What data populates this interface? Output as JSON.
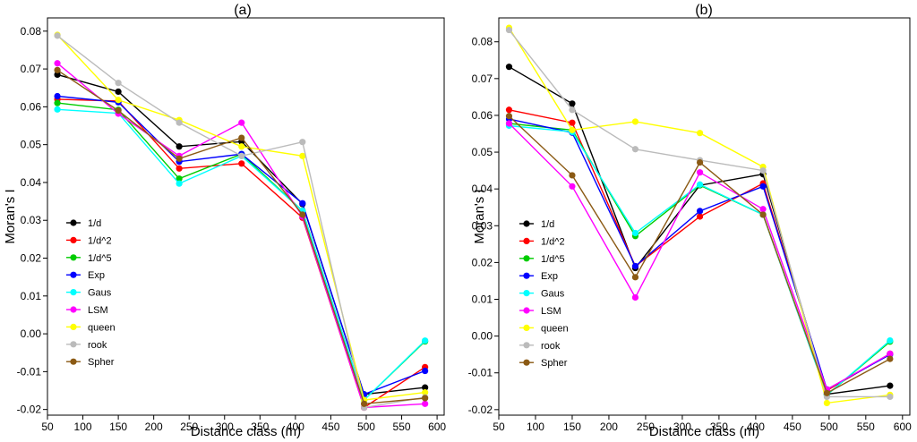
{
  "chart_data": [
    {
      "type": "line",
      "title": "(a)",
      "xlabel": "Distance class (m)",
      "ylabel": "Moran's I",
      "xlim": [
        50,
        610
      ],
      "ylim": [
        -0.0215,
        0.0835
      ],
      "xticks": [
        50,
        100,
        150,
        200,
        250,
        300,
        350,
        400,
        450,
        500,
        550,
        600
      ],
      "yticks": [
        -0.02,
        -0.01,
        0.0,
        0.01,
        0.02,
        0.03,
        0.04,
        0.05,
        0.06,
        0.07,
        0.08
      ],
      "ytick_labels": [
        "-0.02",
        "-0.01",
        "0.00",
        "0.01",
        "0.02",
        "0.03",
        "0.04",
        "0.05",
        "0.06",
        "0.07",
        "0.08"
      ],
      "x": [
        64,
        150,
        236,
        324,
        410,
        497,
        583
      ],
      "legend_position": "left",
      "series": [
        {
          "name": "1/d",
          "color": "#000000",
          "values": [
            0.0685,
            0.064,
            0.0495,
            0.0508,
            0.0343,
            -0.016,
            -0.0142
          ]
        },
        {
          "name": "1/d^2",
          "color": "#ff0000",
          "values": [
            0.062,
            0.0615,
            0.0437,
            0.045,
            0.0307,
            -0.0195,
            -0.0088
          ]
        },
        {
          "name": "1/d^5",
          "color": "#00cc00",
          "values": [
            0.061,
            0.0592,
            0.041,
            0.0475,
            0.0325,
            -0.0175,
            -0.002
          ]
        },
        {
          "name": "Exp",
          "color": "#0000ff",
          "values": [
            0.0628,
            0.0612,
            0.0455,
            0.0475,
            0.0345,
            -0.016,
            -0.0098
          ]
        },
        {
          "name": "Gaus",
          "color": "#00ffff",
          "values": [
            0.0593,
            0.0583,
            0.0397,
            0.047,
            0.0325,
            -0.0175,
            -0.0018
          ]
        },
        {
          "name": "LSM",
          "color": "#ff00ff",
          "values": [
            0.0715,
            0.0582,
            0.047,
            0.0558,
            0.031,
            -0.0195,
            -0.0185
          ]
        },
        {
          "name": "queen",
          "color": "#ffff00",
          "values": [
            0.079,
            0.0618,
            0.0565,
            0.0495,
            0.047,
            -0.0175,
            -0.0155
          ]
        },
        {
          "name": "rook",
          "color": "#bbbbbb",
          "values": [
            0.0788,
            0.0663,
            0.0558,
            0.047,
            0.0507,
            -0.0195,
            -0.0168
          ]
        },
        {
          "name": "Spher",
          "color": "#8b5a14",
          "values": [
            0.0697,
            0.059,
            0.0463,
            0.0518,
            0.0315,
            -0.0185,
            -0.017
          ]
        }
      ]
    },
    {
      "type": "line",
      "title": "(b)",
      "xlabel": "Distance class (m)",
      "ylabel": "Moran's I",
      "xlim": [
        50,
        610
      ],
      "ylim": [
        -0.0215,
        0.0865
      ],
      "xticks": [
        50,
        100,
        150,
        200,
        250,
        300,
        350,
        400,
        450,
        500,
        550,
        600
      ],
      "yticks": [
        -0.02,
        -0.01,
        0.0,
        0.01,
        0.02,
        0.03,
        0.04,
        0.05,
        0.06,
        0.07,
        0.08
      ],
      "ytick_labels": [
        "-0.02",
        "-0.01",
        "0.00",
        "0.01",
        "0.02",
        "0.03",
        "0.04",
        "0.05",
        "0.06",
        "0.07",
        "0.08"
      ],
      "x": [
        64,
        150,
        236,
        324,
        410,
        497,
        583
      ],
      "legend_position": "left",
      "series": [
        {
          "name": "1/d",
          "color": "#000000",
          "values": [
            0.0732,
            0.0632,
            0.0185,
            0.041,
            0.044,
            -0.0158,
            -0.0135
          ]
        },
        {
          "name": "1/d^2",
          "color": "#ff0000",
          "values": [
            0.0615,
            0.058,
            0.019,
            0.0325,
            0.0415,
            -0.0148,
            -0.0048
          ]
        },
        {
          "name": "1/d^5",
          "color": "#00cc00",
          "values": [
            0.0578,
            0.056,
            0.0272,
            0.041,
            0.033,
            -0.016,
            -0.0015
          ]
        },
        {
          "name": "Exp",
          "color": "#0000ff",
          "values": [
            0.059,
            0.0553,
            0.019,
            0.034,
            0.0407,
            -0.0145,
            -0.005
          ]
        },
        {
          "name": "Gaus",
          "color": "#00ffff",
          "values": [
            0.0572,
            0.0555,
            0.028,
            0.0412,
            0.033,
            -0.016,
            -0.0012
          ]
        },
        {
          "name": "LSM",
          "color": "#ff00ff",
          "values": [
            0.0578,
            0.0407,
            0.0105,
            0.0445,
            0.0345,
            -0.0145,
            -0.0048
          ]
        },
        {
          "name": "queen",
          "color": "#ffff00",
          "values": [
            0.0838,
            0.056,
            0.0583,
            0.0552,
            0.046,
            -0.0182,
            -0.016
          ]
        },
        {
          "name": "rook",
          "color": "#bbbbbb",
          "values": [
            0.0832,
            0.0615,
            0.0508,
            0.0478,
            0.045,
            -0.0165,
            -0.0165
          ]
        },
        {
          "name": "Spher",
          "color": "#8b5a14",
          "values": [
            0.0598,
            0.0437,
            0.016,
            0.0472,
            0.033,
            -0.0155,
            -0.0062
          ]
        }
      ]
    }
  ]
}
